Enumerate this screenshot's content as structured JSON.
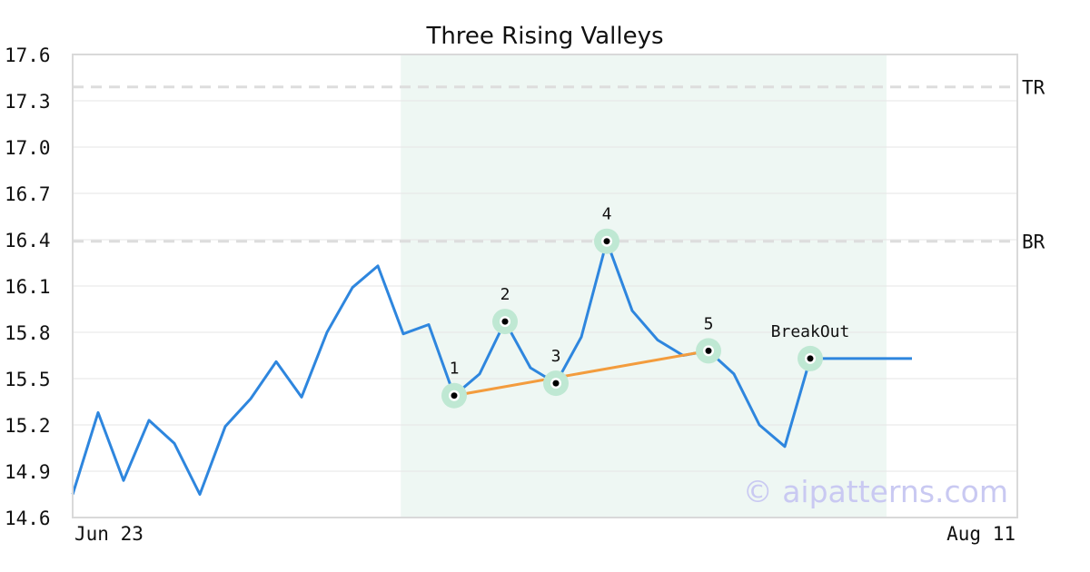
{
  "chart_data": {
    "type": "line",
    "title": "Three Rising Valleys",
    "watermark": "© aipatterns.com",
    "ylim": [
      14.6,
      17.6
    ],
    "y_ticks": [
      "17.6",
      "17.3",
      "17.0",
      "16.7",
      "16.4",
      "16.1",
      "15.8",
      "15.5",
      "15.2",
      "14.9",
      "14.6"
    ],
    "x_tick_labels": [
      "Jun 23",
      "Aug 11"
    ],
    "grid": true,
    "series": [
      {
        "values": [
          14.75,
          15.28,
          14.84,
          15.23,
          15.08,
          14.75,
          15.19,
          15.37,
          15.61,
          15.38,
          15.8,
          16.09,
          16.23,
          15.79,
          15.85,
          15.39,
          15.53,
          15.87,
          15.57,
          15.47,
          15.77,
          16.39,
          15.94,
          15.75,
          15.65,
          15.68,
          15.53,
          15.2,
          15.06,
          15.63,
          15.63,
          15.63,
          15.63,
          15.63
        ]
      }
    ],
    "highlight_range": [
      13,
      32
    ],
    "reference_lines": [
      {
        "label": "TR",
        "value": 17.39
      },
      {
        "label": "BR",
        "value": 16.39
      }
    ],
    "pattern_points": [
      {
        "label": "1",
        "index": 15,
        "value": 15.39
      },
      {
        "label": "2",
        "index": 17,
        "value": 15.87
      },
      {
        "label": "3",
        "index": 19,
        "value": 15.47
      },
      {
        "label": "4",
        "index": 21,
        "value": 16.39
      },
      {
        "label": "5",
        "index": 25,
        "value": 15.68
      },
      {
        "label": "BreakOut",
        "index": 29,
        "value": 15.63
      }
    ],
    "trendline": {
      "from_index": 15,
      "from_value": 15.39,
      "to_index": 25,
      "to_value": 15.68
    },
    "colors": {
      "line": "#2e86de",
      "trendline": "#f39c3d",
      "highlight": "#eef7f3",
      "marker_halo": "#bfe8d3",
      "reference": "#dddddd",
      "grid": "#e6e6e6",
      "frame": "#d9d9d9"
    }
  }
}
